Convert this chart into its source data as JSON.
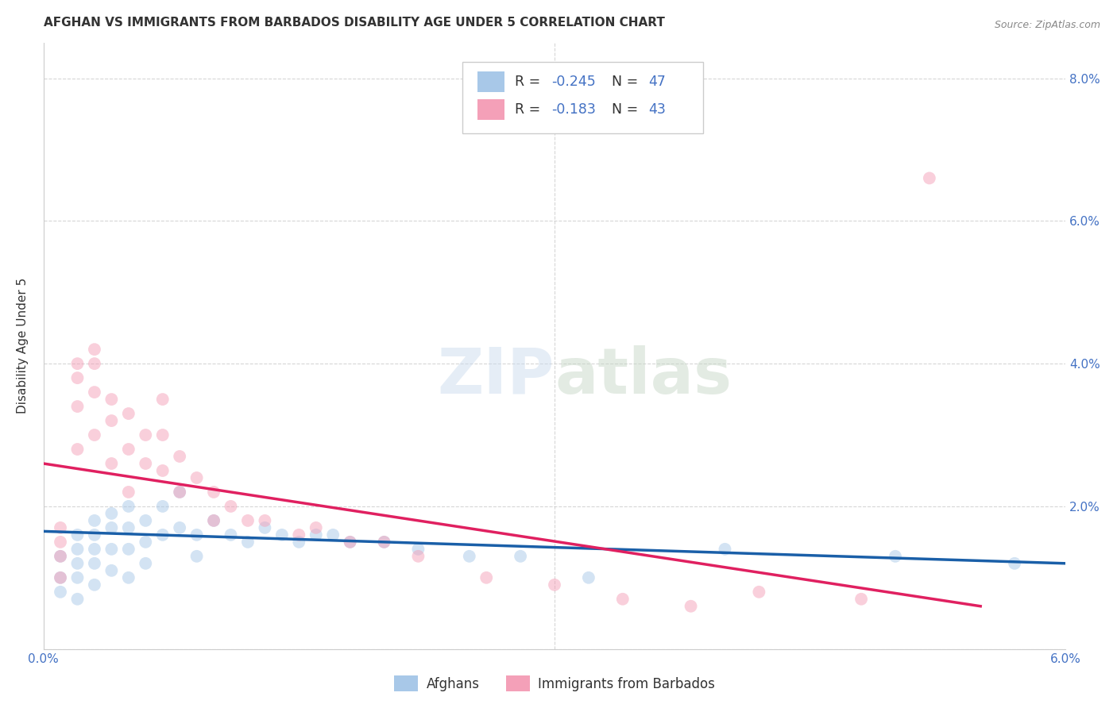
{
  "title": "AFGHAN VS IMMIGRANTS FROM BARBADOS DISABILITY AGE UNDER 5 CORRELATION CHART",
  "source": "Source: ZipAtlas.com",
  "ylabel": "Disability Age Under 5",
  "xlim": [
    0.0,
    0.06
  ],
  "ylim": [
    0.0,
    0.085
  ],
  "x_tick_pos": [
    0.0,
    0.01,
    0.02,
    0.03,
    0.04,
    0.05,
    0.06
  ],
  "x_tick_labels": [
    "0.0%",
    "",
    "",
    "",
    "",
    "",
    "6.0%"
  ],
  "y_tick_pos": [
    0.0,
    0.02,
    0.04,
    0.06,
    0.08
  ],
  "y_tick_labels": [
    "",
    "2.0%",
    "4.0%",
    "6.0%",
    "8.0%"
  ],
  "r1": "-0.245",
  "n1": "47",
  "r2": "-0.183",
  "n2": "43",
  "color_afghan": "#a8c8e8",
  "color_barbados": "#f4a0b8",
  "color_line_afghan": "#1a5fa8",
  "color_line_barbados": "#e02060",
  "color_axis": "#4472c4",
  "color_grid": "#cccccc",
  "color_dark": "#333333",
  "watermark": "ZIPatlas",
  "legend_labels": [
    "Afghans",
    "Immigrants from Barbados"
  ],
  "scatter_size": 130,
  "scatter_alpha": 0.5,
  "title_fontsize": 11,
  "tick_fontsize": 11,
  "afghan_x": [
    0.001,
    0.001,
    0.001,
    0.002,
    0.002,
    0.002,
    0.002,
    0.002,
    0.003,
    0.003,
    0.003,
    0.003,
    0.003,
    0.004,
    0.004,
    0.004,
    0.004,
    0.005,
    0.005,
    0.005,
    0.005,
    0.006,
    0.006,
    0.006,
    0.007,
    0.007,
    0.008,
    0.008,
    0.009,
    0.009,
    0.01,
    0.011,
    0.012,
    0.013,
    0.014,
    0.015,
    0.016,
    0.017,
    0.018,
    0.02,
    0.022,
    0.025,
    0.028,
    0.032,
    0.04,
    0.05,
    0.057
  ],
  "afghan_y": [
    0.013,
    0.01,
    0.008,
    0.016,
    0.014,
    0.012,
    0.01,
    0.007,
    0.018,
    0.016,
    0.014,
    0.012,
    0.009,
    0.019,
    0.017,
    0.014,
    0.011,
    0.02,
    0.017,
    0.014,
    0.01,
    0.018,
    0.015,
    0.012,
    0.02,
    0.016,
    0.022,
    0.017,
    0.016,
    0.013,
    0.018,
    0.016,
    0.015,
    0.017,
    0.016,
    0.015,
    0.016,
    0.016,
    0.015,
    0.015,
    0.014,
    0.013,
    0.013,
    0.01,
    0.014,
    0.013,
    0.012
  ],
  "barbados_x": [
    0.001,
    0.001,
    0.001,
    0.001,
    0.002,
    0.002,
    0.002,
    0.002,
    0.003,
    0.003,
    0.003,
    0.003,
    0.004,
    0.004,
    0.004,
    0.005,
    0.005,
    0.005,
    0.006,
    0.006,
    0.007,
    0.007,
    0.007,
    0.008,
    0.008,
    0.009,
    0.01,
    0.01,
    0.011,
    0.012,
    0.013,
    0.015,
    0.016,
    0.018,
    0.02,
    0.022,
    0.026,
    0.03,
    0.034,
    0.038,
    0.042,
    0.048,
    0.052
  ],
  "barbados_y": [
    0.017,
    0.015,
    0.013,
    0.01,
    0.04,
    0.038,
    0.034,
    0.028,
    0.042,
    0.04,
    0.036,
    0.03,
    0.035,
    0.032,
    0.026,
    0.033,
    0.028,
    0.022,
    0.03,
    0.026,
    0.035,
    0.03,
    0.025,
    0.027,
    0.022,
    0.024,
    0.022,
    0.018,
    0.02,
    0.018,
    0.018,
    0.016,
    0.017,
    0.015,
    0.015,
    0.013,
    0.01,
    0.009,
    0.007,
    0.006,
    0.008,
    0.007,
    0.066
  ],
  "line_afghan_x0": 0.0,
  "line_afghan_x1": 0.06,
  "line_afghan_y0": 0.0165,
  "line_afghan_y1": 0.012,
  "line_barbados_x0": 0.0,
  "line_barbados_x1": 0.055,
  "line_barbados_y0": 0.026,
  "line_barbados_y1": 0.006
}
